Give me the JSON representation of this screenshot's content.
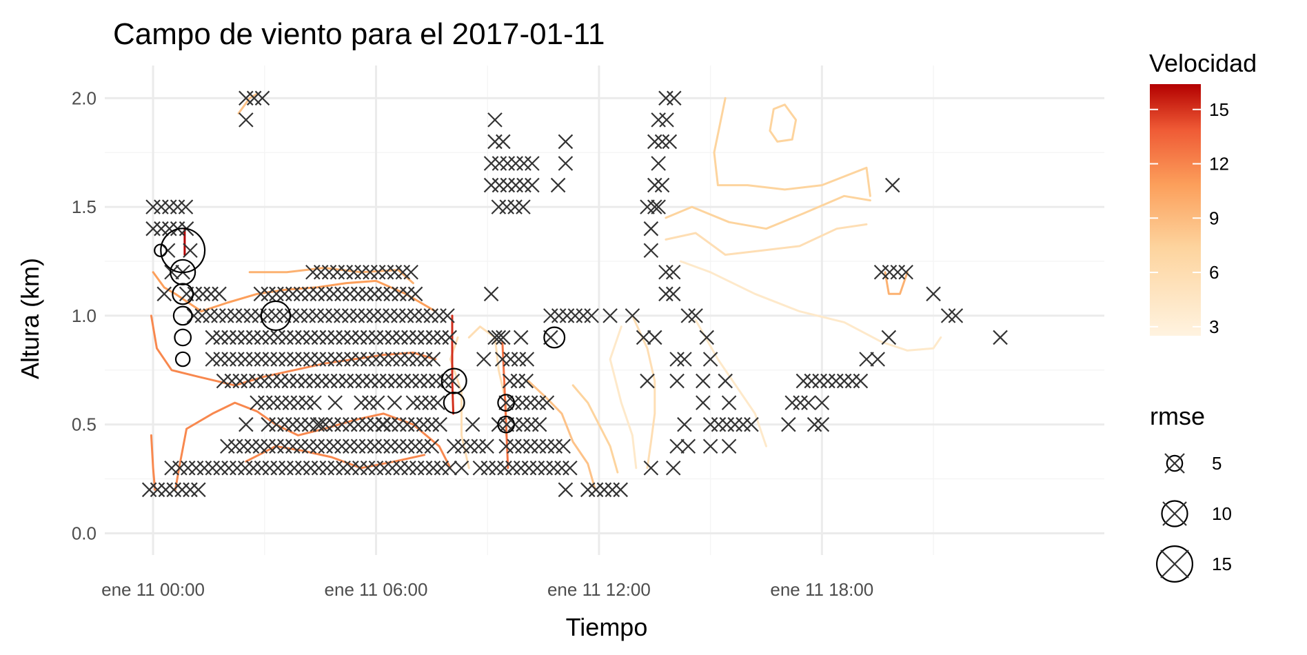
{
  "chart_data": {
    "type": "scatter",
    "title": "Campo de viento para el 2017-01-11",
    "xlabel": "Tiempo",
    "ylabel": "Altura (km)",
    "x_unit": "hours since ene 11 00:00",
    "xlim": [
      -1.3,
      25.6
    ],
    "ylim": [
      -0.1,
      2.15
    ],
    "x_ticks": [
      {
        "value": 0,
        "label": "ene 11 00:00"
      },
      {
        "value": 6,
        "label": "ene 11 06:00"
      },
      {
        "value": 12,
        "label": "ene 11 12:00"
      },
      {
        "value": 18,
        "label": "ene 11 18:00"
      }
    ],
    "y_ticks": [
      {
        "value": 0.0,
        "label": "0.0"
      },
      {
        "value": 0.5,
        "label": "0.5"
      },
      {
        "value": 1.0,
        "label": "1.0"
      },
      {
        "value": 1.5,
        "label": "1.5"
      },
      {
        "value": 2.0,
        "label": "2.0"
      }
    ],
    "grid": true,
    "colors": {
      "low": "#fff3e0",
      "mid": "#fdc070",
      "high": "#f47644",
      "max": "#b30000",
      "marker": "#333333"
    },
    "legend_velocidad": {
      "title": "Velocidad",
      "range": [
        2.5,
        16.4
      ],
      "ticks": [
        "3",
        "6",
        "9",
        "12",
        "15"
      ],
      "tick_values": [
        3,
        6,
        9,
        12,
        15
      ],
      "placement": "right-top"
    },
    "legend_rmse": {
      "title": "rmse",
      "entries": [
        {
          "label": "5",
          "value": 5
        },
        {
          "label": "10",
          "value": 10
        },
        {
          "label": "15",
          "value": 15
        }
      ],
      "placement": "right-bottom"
    },
    "series_points": [
      {
        "y": 0.2,
        "x_ranges": [
          [
            -0.1,
            1.4
          ],
          [
            11.7,
            12.6
          ]
        ],
        "x_single": [
          11.1
        ]
      },
      {
        "y": 0.3,
        "x_ranges": [
          [
            0.5,
            8.0
          ],
          [
            8.8,
            11.3
          ]
        ],
        "x_single": [
          8.3,
          13.4,
          14.0
        ]
      },
      {
        "y": 0.4,
        "x_ranges": [
          [
            2.0,
            7.6
          ],
          [
            8.1,
            9.0
          ],
          [
            9.5,
            11.2
          ]
        ],
        "x_single": [
          14.1,
          14.4,
          15.0,
          15.5
        ]
      },
      {
        "y": 0.5,
        "x_ranges": [
          [
            3.1,
            7.9
          ],
          [
            9.3,
            10.6
          ],
          [
            15.0,
            16.3
          ]
        ],
        "x_single": [
          2.5,
          4.5,
          6.2,
          8.6,
          14.3,
          17.1,
          17.8,
          18.0
        ]
      },
      {
        "y": 0.6,
        "x_ranges": [
          [
            2.8,
            4.4
          ],
          [
            5.6,
            6.2
          ],
          [
            7.0,
            7.8
          ],
          [
            9.5,
            10.6
          ],
          [
            17.2,
            17.8
          ]
        ],
        "x_single": [
          4.9,
          6.5,
          14.8,
          15.5,
          18.0
        ]
      },
      {
        "y": 0.7,
        "x_ranges": [
          [
            1.9,
            8.2
          ],
          [
            9.6,
            10.2
          ],
          [
            17.5,
            19.1
          ]
        ],
        "x_single": [
          13.3,
          14.1,
          14.8,
          15.4
        ]
      },
      {
        "y": 0.8,
        "x_ranges": [
          [
            1.6,
            7.6
          ],
          [
            9.4,
            10.2
          ]
        ],
        "x_single": [
          8.9,
          14.1,
          14.3,
          15.0,
          19.2,
          19.5
        ]
      },
      {
        "y": 0.9,
        "x_ranges": [
          [
            1.6,
            8.1
          ],
          [
            9.2,
            9.6
          ]
        ],
        "x_single": [
          9.3,
          9.9,
          10.7,
          13.2,
          13.5,
          14.9,
          19.8,
          22.8
        ]
      },
      {
        "y": 1.0,
        "x_ranges": [
          [
            1.1,
            8.0
          ],
          [
            10.7,
            11.8
          ]
        ],
        "x_single": [
          12.3,
          12.9,
          14.4,
          14.6,
          21.4,
          21.6
        ]
      },
      {
        "y": 1.1,
        "x_ranges": [
          [
            0.9,
            1.9
          ],
          [
            3.1,
            7.1
          ]
        ],
        "x_single": [
          0.3,
          2.9,
          9.1,
          13.8,
          14.0,
          21.0
        ]
      },
      {
        "y": 1.2,
        "x_ranges": [
          [
            4.3,
            7.0
          ],
          [
            19.6,
            20.3
          ]
        ],
        "x_single": [
          0.5,
          0.8,
          13.8,
          14.0
        ]
      },
      {
        "y": 1.3,
        "x_ranges": [],
        "x_single": [
          0.4,
          1.0,
          13.4
        ]
      },
      {
        "y": 1.4,
        "x_ranges": [
          [
            0.0,
            0.7
          ]
        ],
        "x_single": [
          0.9,
          13.4
        ]
      },
      {
        "y": 1.5,
        "x_ranges": [
          [
            0.0,
            0.9
          ],
          [
            9.3,
            10.0
          ]
        ],
        "x_single": [
          13.3,
          13.5,
          13.6
        ]
      },
      {
        "y": 1.6,
        "x_ranges": [
          [
            9.1,
            10.3
          ]
        ],
        "x_single": [
          10.9,
          13.5,
          13.7,
          19.9
        ]
      },
      {
        "y": 1.7,
        "x_ranges": [
          [
            9.1,
            10.4
          ]
        ],
        "x_single": [
          11.1,
          13.6
        ]
      },
      {
        "y": 1.8,
        "x_ranges": [
          [
            9.2,
            9.5
          ]
        ],
        "x_single": [
          11.1,
          13.5,
          13.7,
          13.9
        ]
      },
      {
        "y": 1.9,
        "x_ranges": [
          [
            13.6,
            13.9
          ]
        ],
        "x_single": [
          2.5,
          9.2
        ]
      },
      {
        "y": 2.0,
        "x_ranges": [
          [
            2.5,
            3.0
          ],
          [
            13.8,
            14.1
          ]
        ],
        "x_single": []
      }
    ],
    "rmse_points": [
      {
        "x": 0.2,
        "y": 1.3,
        "rmse": 3
      },
      {
        "x": 0.8,
        "y": 1.3,
        "rmse": 18
      },
      {
        "x": 0.8,
        "y": 1.2,
        "rmse": 9
      },
      {
        "x": 0.8,
        "y": 1.1,
        "rmse": 7
      },
      {
        "x": 0.8,
        "y": 1.0,
        "rmse": 6
      },
      {
        "x": 0.8,
        "y": 0.9,
        "rmse": 5
      },
      {
        "x": 0.8,
        "y": 0.8,
        "rmse": 4
      },
      {
        "x": 3.3,
        "y": 1.0,
        "rmse": 11
      },
      {
        "x": 8.1,
        "y": 0.7,
        "rmse": 9
      },
      {
        "x": 8.1,
        "y": 0.6,
        "rmse": 7
      },
      {
        "x": 9.5,
        "y": 0.6,
        "rmse": 5
      },
      {
        "x": 9.5,
        "y": 0.5,
        "rmse": 5
      },
      {
        "x": 10.8,
        "y": 0.9,
        "rmse": 7
      }
    ],
    "contours": [
      {
        "level": 6,
        "points": [
          [
            15.4,
            2.0
          ],
          [
            15.1,
            1.75
          ],
          [
            15.2,
            1.6
          ],
          [
            16.0,
            1.6
          ],
          [
            17.0,
            1.58
          ],
          [
            18.0,
            1.6
          ],
          [
            19.2,
            1.68
          ],
          [
            19.3,
            1.55
          ]
        ]
      },
      {
        "level": 6,
        "points": [
          [
            13.8,
            1.45
          ],
          [
            14.5,
            1.5
          ],
          [
            15.5,
            1.43
          ],
          [
            16.5,
            1.4
          ],
          [
            17.5,
            1.47
          ],
          [
            18.6,
            1.55
          ],
          [
            19.3,
            1.53
          ]
        ]
      },
      {
        "level": 5,
        "points": [
          [
            13.8,
            1.35
          ],
          [
            14.6,
            1.38
          ],
          [
            15.4,
            1.28
          ],
          [
            16.4,
            1.3
          ],
          [
            17.4,
            1.32
          ],
          [
            18.4,
            1.4
          ],
          [
            19.2,
            1.42
          ]
        ]
      },
      {
        "level": 4,
        "points": [
          [
            14.2,
            1.25
          ],
          [
            15.0,
            1.2
          ],
          [
            16.2,
            1.1
          ],
          [
            17.4,
            1.02
          ],
          [
            18.6,
            0.97
          ],
          [
            19.6,
            0.88
          ],
          [
            20.3,
            0.84
          ],
          [
            21.0,
            0.85
          ],
          [
            21.2,
            0.9
          ]
        ]
      },
      {
        "level": 6,
        "points": [
          [
            16.6,
            1.85
          ],
          [
            16.7,
            1.95
          ],
          [
            17.0,
            1.97
          ],
          [
            17.3,
            1.9
          ],
          [
            17.2,
            1.81
          ],
          [
            16.8,
            1.8
          ],
          [
            16.6,
            1.85
          ]
        ]
      },
      {
        "level": 5,
        "points": [
          [
            12.9,
            1.0
          ],
          [
            13.3,
            0.85
          ],
          [
            13.5,
            0.7
          ],
          [
            13.5,
            0.55
          ],
          [
            13.4,
            0.42
          ],
          [
            13.3,
            0.3
          ]
        ]
      },
      {
        "level": 4,
        "points": [
          [
            14.6,
            0.98
          ],
          [
            15.2,
            0.8
          ],
          [
            15.6,
            0.7
          ],
          [
            16.2,
            0.55
          ],
          [
            16.5,
            0.4
          ]
        ]
      },
      {
        "level": 4,
        "points": [
          [
            12.6,
            0.95
          ],
          [
            12.3,
            0.8
          ],
          [
            12.6,
            0.6
          ],
          [
            12.9,
            0.45
          ],
          [
            13.0,
            0.3
          ]
        ]
      },
      {
        "level": 6,
        "points": [
          [
            11.3,
            0.68
          ],
          [
            11.7,
            0.6
          ],
          [
            12.0,
            0.5
          ],
          [
            12.3,
            0.4
          ],
          [
            12.5,
            0.28
          ]
        ]
      },
      {
        "level": 7,
        "points": [
          [
            10.1,
            0.7
          ],
          [
            10.6,
            0.62
          ],
          [
            11.0,
            0.55
          ],
          [
            11.3,
            0.42
          ],
          [
            11.7,
            0.32
          ],
          [
            11.9,
            0.2
          ]
        ]
      },
      {
        "level": 5,
        "points": [
          [
            8.5,
            0.9
          ],
          [
            8.8,
            0.95
          ],
          [
            9.2,
            0.9
          ],
          [
            9.3,
            0.75
          ],
          [
            9.5,
            0.6
          ],
          [
            9.5,
            0.45
          ]
        ]
      },
      {
        "level": 5,
        "points": [
          [
            8.2,
            0.9
          ],
          [
            8.0,
            0.8
          ],
          [
            8.3,
            0.65
          ],
          [
            8.3,
            0.45
          ],
          [
            8.5,
            0.3
          ]
        ]
      },
      {
        "level": 10,
        "points": [
          [
            -0.05,
            0.45
          ],
          [
            0.0,
            0.3
          ],
          [
            0.05,
            0.2
          ]
        ]
      },
      {
        "level": 10,
        "points": [
          [
            -0.05,
            1.0
          ],
          [
            0.1,
            0.85
          ],
          [
            0.5,
            0.75
          ],
          [
            1.2,
            0.72
          ],
          [
            2.2,
            0.68
          ],
          [
            3.0,
            0.72
          ],
          [
            3.8,
            0.75
          ],
          [
            4.6,
            0.78
          ],
          [
            5.4,
            0.8
          ],
          [
            6.2,
            0.82
          ],
          [
            7.0,
            0.83
          ],
          [
            7.6,
            0.8
          ]
        ]
      },
      {
        "level": 10,
        "points": [
          [
            0.6,
            0.2
          ],
          [
            0.7,
            0.3
          ],
          [
            0.9,
            0.48
          ],
          [
            1.6,
            0.55
          ],
          [
            2.2,
            0.6
          ],
          [
            2.8,
            0.56
          ],
          [
            3.3,
            0.5
          ],
          [
            3.9,
            0.45
          ],
          [
            4.6,
            0.48
          ],
          [
            5.4,
            0.52
          ],
          [
            6.2,
            0.55
          ],
          [
            7.0,
            0.5
          ],
          [
            7.7,
            0.4
          ],
          [
            8.0,
            0.3
          ]
        ]
      },
      {
        "level": 9,
        "points": [
          [
            0.0,
            1.2
          ],
          [
            0.3,
            1.13
          ],
          [
            0.6,
            1.1
          ],
          [
            1.3,
            1.02
          ],
          [
            2.0,
            1.06
          ],
          [
            2.8,
            1.1
          ],
          [
            3.6,
            1.12
          ],
          [
            4.4,
            1.13
          ],
          [
            5.2,
            1.15
          ],
          [
            6.0,
            1.16
          ],
          [
            6.8,
            1.1
          ],
          [
            7.6,
            1.02
          ]
        ]
      },
      {
        "level": 8,
        "points": [
          [
            2.6,
            1.2
          ],
          [
            3.6,
            1.2
          ],
          [
            4.6,
            1.22
          ],
          [
            5.6,
            1.2
          ],
          [
            6.6,
            1.21
          ],
          [
            7.0,
            1.15
          ]
        ]
      },
      {
        "level": 10,
        "points": [
          [
            2.5,
            0.33
          ],
          [
            3.3,
            0.4
          ],
          [
            4.0,
            0.38
          ],
          [
            4.8,
            0.35
          ],
          [
            5.6,
            0.3
          ],
          [
            6.5,
            0.33
          ],
          [
            7.3,
            0.36
          ]
        ]
      },
      {
        "level": 14,
        "points": [
          [
            8.05,
            1.0
          ],
          [
            8.05,
            0.85
          ],
          [
            8.05,
            0.7
          ],
          [
            8.08,
            0.55
          ]
        ]
      },
      {
        "level": 11,
        "points": [
          [
            9.4,
            0.88
          ],
          [
            9.45,
            0.7
          ],
          [
            9.5,
            0.5
          ],
          [
            9.55,
            0.3
          ]
        ]
      },
      {
        "level": 8,
        "points": [
          [
            19.7,
            1.2
          ],
          [
            19.8,
            1.1
          ],
          [
            20.1,
            1.1
          ],
          [
            20.3,
            1.2
          ]
        ]
      },
      {
        "level": 7,
        "points": [
          [
            2.3,
            1.93
          ],
          [
            2.6,
            2.0
          ],
          [
            2.8,
            2.02
          ]
        ]
      },
      {
        "level": 16,
        "points": [
          [
            0.85,
            1.4
          ],
          [
            0.85,
            1.35
          ],
          [
            0.85,
            1.28
          ]
        ]
      }
    ]
  }
}
